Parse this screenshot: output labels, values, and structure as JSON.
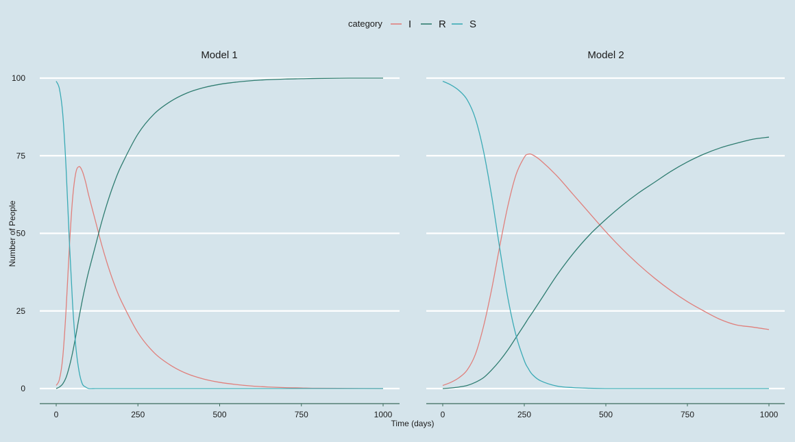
{
  "chart_data": {
    "type": "line",
    "xlabel": "Time (days)",
    "ylabel": "Number of People",
    "xlim": [
      0,
      1000
    ],
    "ylim": [
      0,
      100
    ],
    "x_ticks": [
      0,
      250,
      500,
      750,
      1000
    ],
    "y_ticks": [
      0,
      25,
      50,
      75,
      100
    ],
    "grid": "horizontal major lines",
    "legend": {
      "title": "category",
      "position": "top",
      "entries": [
        {
          "name": "I",
          "color": "#e07f7b"
        },
        {
          "name": "R",
          "color": "#2e7c70"
        },
        {
          "name": "S",
          "color": "#3aaab5"
        }
      ]
    },
    "panels": [
      {
        "title": "Model 1",
        "x": [
          0,
          10,
          20,
          30,
          40,
          50,
          60,
          70,
          80,
          90,
          100,
          120,
          140,
          160,
          180,
          200,
          250,
          300,
          350,
          400,
          450,
          500,
          550,
          600,
          650,
          700,
          750,
          800,
          900,
          1000
        ],
        "series": [
          {
            "name": "I",
            "values": [
              1,
              3,
              10,
              25,
              45,
              61,
              69.5,
              71.5,
              70,
              66.5,
              62,
              54,
              46,
              39,
              33,
              28,
              18,
              11.5,
              7.5,
              4.8,
              3.1,
              2,
              1.3,
              0.8,
              0.5,
              0.3,
              0.2,
              0.1,
              0.05,
              0
            ]
          },
          {
            "name": "R",
            "values": [
              0,
              0.5,
              1.5,
              3.5,
              7,
              11.5,
              17,
              23,
              28.5,
              33.5,
              38,
              46,
              54,
              61,
              67,
              72,
              82,
              88.5,
              92.5,
              95.2,
              96.9,
              98,
              98.7,
              99.2,
              99.5,
              99.7,
              99.8,
              99.9,
              100,
              100
            ]
          },
          {
            "name": "S",
            "values": [
              99,
              96.5,
              88.5,
              71.5,
              48,
              27.5,
              13.5,
              5.5,
              1.5,
              0.5,
              0,
              0,
              0,
              0,
              0,
              0,
              0,
              0,
              0,
              0,
              0,
              0,
              0,
              0,
              0,
              0,
              0,
              0,
              0,
              0
            ]
          }
        ]
      },
      {
        "title": "Model 2",
        "x": [
          0,
          25,
          50,
          75,
          100,
          125,
          150,
          175,
          200,
          225,
          250,
          262,
          275,
          300,
          350,
          400,
          450,
          500,
          550,
          600,
          650,
          700,
          750,
          800,
          850,
          900,
          950,
          1000
        ],
        "series": [
          {
            "name": "I",
            "values": [
              1,
              2,
              3.5,
              6,
              11,
              20,
              32,
              46,
              59,
              69,
              74.5,
              75.5,
              75.3,
              73.5,
              68.5,
              62.5,
              56.5,
              50.5,
              45,
              40,
              35.5,
              31.5,
              28,
              25,
              22.3,
              20.5,
              19.8,
              19
            ]
          },
          {
            "name": "R",
            "values": [
              0,
              0.2,
              0.5,
              1,
              2,
              3.5,
              6,
              9,
              12.5,
              16.5,
              20.5,
              22.5,
              24.5,
              28.5,
              36.5,
              43.5,
              49.5,
              54.5,
              59,
              63,
              66.5,
              70,
              73,
              75.5,
              77.5,
              79,
              80.3,
              81
            ]
          },
          {
            "name": "S",
            "values": [
              99,
              97.8,
              96,
              93,
              87,
              76.5,
              62,
              45,
              29,
              17,
              9,
              6.5,
              4.5,
              2.5,
              0.8,
              0.3,
              0.1,
              0,
              0,
              0,
              0,
              0,
              0,
              0,
              0,
              0,
              0,
              0
            ]
          }
        ]
      }
    ]
  }
}
